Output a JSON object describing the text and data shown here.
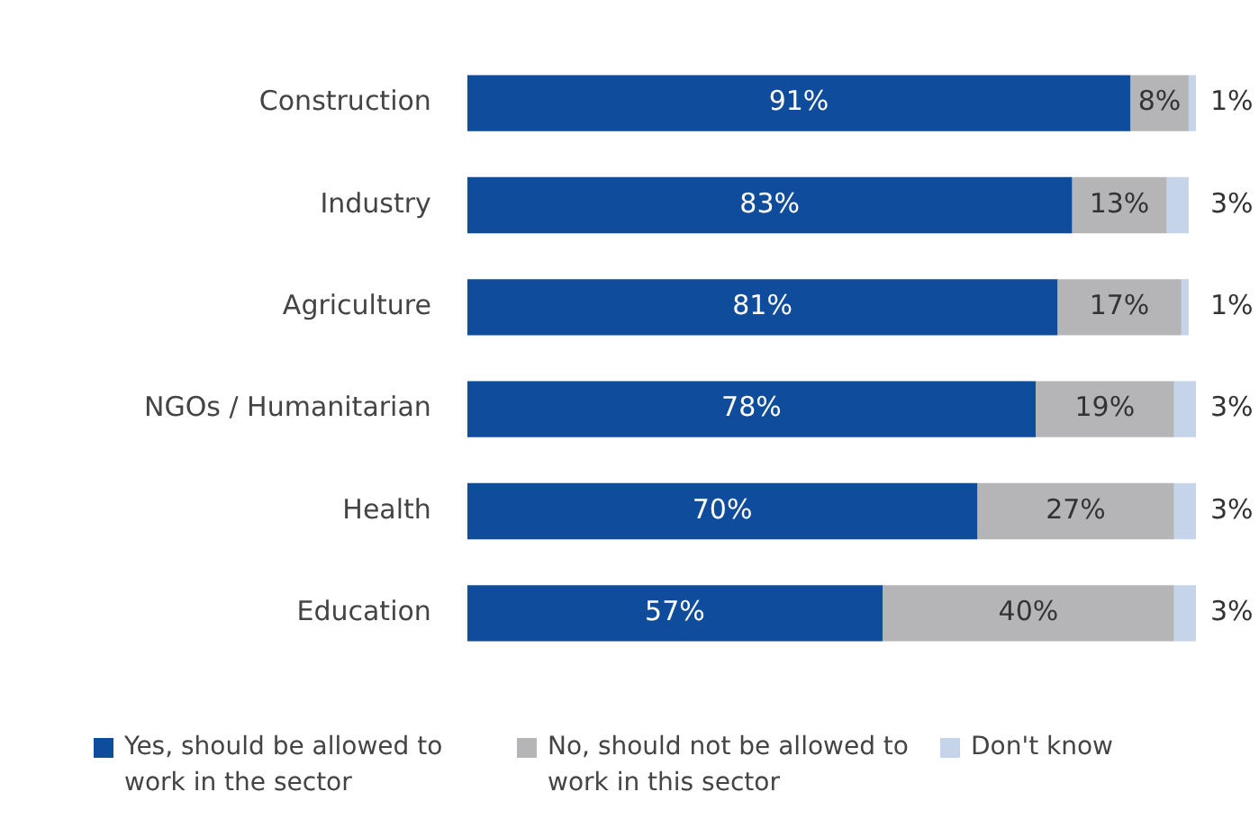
{
  "chart_data": {
    "type": "bar",
    "orientation": "horizontal",
    "stacked": true,
    "categories": [
      "Construction",
      "Industry",
      "Agriculture",
      "NGOs / Humanitarian",
      "Health",
      "Education"
    ],
    "series": [
      {
        "name": "Yes, should be allowed to work in the sector",
        "color": "#0f4c9c",
        "values": [
          91,
          83,
          81,
          78,
          70,
          57
        ],
        "value_labels": [
          "91%",
          "83%",
          "81%",
          "78%",
          "70%",
          "57%"
        ]
      },
      {
        "name": "No, should not be allowed to work in this sector",
        "color": "#b5b5b7",
        "values": [
          8,
          13,
          17,
          19,
          27,
          40
        ],
        "value_labels": [
          "8%",
          "13%",
          "17%",
          "19%",
          "27%",
          "40%"
        ]
      },
      {
        "name": "Don't know",
        "color": "#c6d4ea",
        "values": [
          1,
          3,
          1,
          3,
          3,
          3
        ],
        "value_labels": [
          "1%",
          "3%",
          "1%",
          "3%",
          "3%",
          "3%"
        ]
      }
    ],
    "xlim": [
      0,
      100
    ],
    "tick_labels": "y",
    "grid": false,
    "legend": "bottom"
  }
}
